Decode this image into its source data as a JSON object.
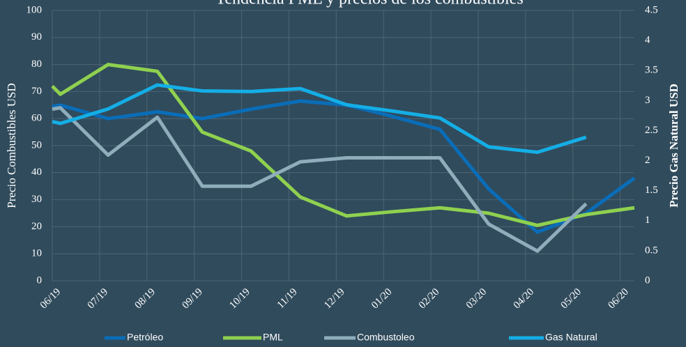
{
  "chart_data": {
    "type": "line",
    "title": "Tendencia PML y precios de los combustibles",
    "y_label": "Precio Combustibles USD",
    "y2_label": "Precio Gas Natural USD",
    "x": [
      0,
      0.17,
      1.18,
      2.22,
      3.17,
      4.2,
      5.24,
      6.22,
      7.15,
      8.19,
      9.22,
      10.25,
      11.28,
      12.3
    ],
    "xlim": [
      0,
      12.3
    ],
    "xticks": [
      {
        "value": 0,
        "label": "06/19"
      },
      {
        "value": 1,
        "label": "07/19"
      },
      {
        "value": 2,
        "label": "08/19"
      },
      {
        "value": 3,
        "label": "09/19"
      },
      {
        "value": 4,
        "label": "10/19"
      },
      {
        "value": 5,
        "label": "11/19"
      },
      {
        "value": 6,
        "label": "12/19"
      },
      {
        "value": 7,
        "label": "01/20"
      },
      {
        "value": 8,
        "label": "02/20"
      },
      {
        "value": 9,
        "label": "03/20"
      },
      {
        "value": 10,
        "label": "04/20"
      },
      {
        "value": 11,
        "label": "05/20"
      },
      {
        "value": 12,
        "label": "06/20"
      }
    ],
    "ylim": [
      0,
      100
    ],
    "yticks": [
      0,
      10,
      20,
      30,
      40,
      50,
      60,
      70,
      80,
      90,
      100
    ],
    "y2lim": [
      0,
      4.5
    ],
    "y2ticks": [
      0,
      0.5,
      1,
      1.5,
      2,
      2.5,
      3,
      3.5,
      4,
      4.5
    ],
    "grid": true,
    "legend": "bottom",
    "series": [
      {
        "name": "Petróleo",
        "color": "#0a6db8",
        "values": [
          64.5,
          65,
          60,
          62.5,
          60,
          63.5,
          66.5,
          65,
          61,
          56,
          34,
          18,
          25,
          38
        ]
      },
      {
        "name": "PML",
        "color": "#8fd14f",
        "values": [
          72,
          69,
          80,
          77.5,
          55,
          48,
          31,
          24,
          25.5,
          27,
          25,
          20.5,
          24.5,
          27
        ]
      },
      {
        "name": "Combustoleo",
        "color": "#8fadbb",
        "values": [
          63.5,
          64,
          46.5,
          60.5,
          35,
          35,
          44,
          45.5,
          45.5,
          45.5,
          21,
          11,
          28.5,
          null
        ]
      },
      {
        "name": "Gas Natural",
        "color": "#14aee6",
        "axis": "y2",
        "values": [
          2.65,
          2.62,
          2.86,
          3.26,
          3.16,
          3.15,
          3.2,
          2.93,
          2.83,
          2.71,
          2.23,
          2.14,
          2.39,
          null
        ]
      }
    ]
  }
}
